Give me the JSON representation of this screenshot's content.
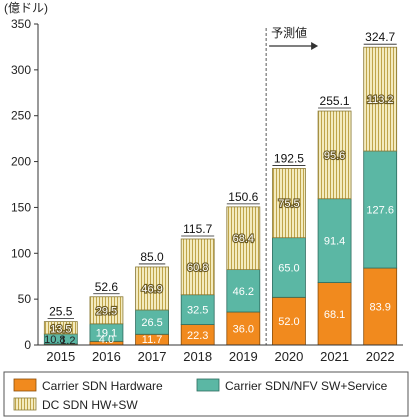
{
  "chart_data": {
    "type": "bar",
    "stacked": true,
    "unit_label": "(億ドル)",
    "categories": [
      "2015",
      "2016",
      "2017",
      "2018",
      "2019",
      "2020",
      "2021",
      "2022"
    ],
    "series": [
      {
        "name": "Carrier SDN Hardware",
        "values": [
          1.2,
          4.0,
          11.7,
          22.3,
          36.0,
          52.0,
          68.1,
          83.9
        ],
        "color": "#F18A1E"
      },
      {
        "name": "Carrier SDN/NFV SW+Service",
        "values": [
          10.8,
          19.1,
          26.5,
          32.5,
          46.2,
          65.0,
          91.4,
          127.6
        ],
        "color": "#5BB7A4"
      },
      {
        "name": "DC SDN HW+SW",
        "values": [
          13.5,
          29.5,
          46.9,
          60.8,
          68.4,
          75.5,
          95.6,
          113.2
        ],
        "color": "#EFE5B0"
      }
    ],
    "value_labels": [
      [
        "1.2",
        "4.0",
        "11.7",
        "22.3",
        "36.0",
        "52.0",
        "68.1",
        "83.9"
      ],
      [
        "10.8",
        "19.1",
        "26.5",
        "32.5",
        "46.2",
        "65.0",
        "91.4",
        "127.6"
      ],
      [
        "13.5",
        "29.5",
        "46.9",
        "60.8",
        "68.4",
        "75.5",
        "95.6",
        "113.2"
      ]
    ],
    "totals": [
      "25.5",
      "52.6",
      "85.0",
      "115.7",
      "150.6",
      "192.5",
      "255.1",
      "324.7"
    ],
    "ylim": [
      0,
      350
    ],
    "yticks": [
      0,
      50,
      100,
      150,
      200,
      250,
      300,
      350
    ],
    "forecast": {
      "label": "予測値",
      "start_index": 5
    },
    "legend_position": "bottom",
    "grid": false
  }
}
